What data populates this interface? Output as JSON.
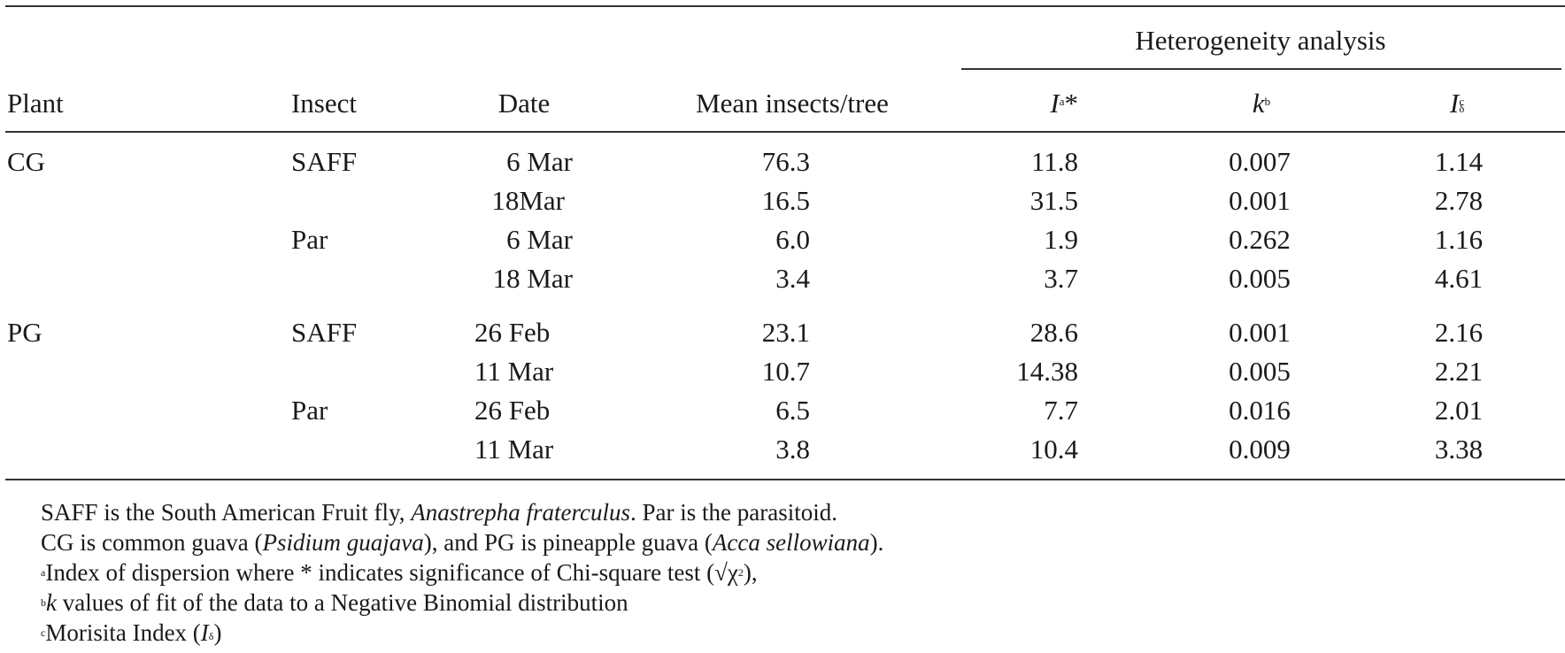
{
  "header": {
    "group": "Heterogeneity analysis",
    "plant": "Plant",
    "insect": "Insect",
    "date": "Date",
    "mean": "Mean insects/tree",
    "i_sym": "I",
    "i_sup": "a",
    "i_star": "*",
    "k_sym": "k",
    "k_sup": "b",
    "id_sym": "I",
    "id_sub": "δ",
    "id_sup": "c"
  },
  "rows": [
    {
      "plant": "CG",
      "insect": "SAFF",
      "date": "6 Mar",
      "mean": "76.3",
      "i": "11.8",
      "k": "0.007",
      "id": "1.14"
    },
    {
      "plant": "",
      "insect": "",
      "date": "18Mar",
      "mean": "16.5",
      "i": "31.5",
      "k": "0.001",
      "id": "2.78"
    },
    {
      "plant": "",
      "insect": "Par",
      "date": "6 Mar",
      "mean": "6.0",
      "i": "1.9",
      "k": "0.262",
      "id": "1.16"
    },
    {
      "plant": "",
      "insect": "",
      "date": "18 Mar",
      "mean": "3.4",
      "i": "3.7",
      "k": "0.005",
      "id": "4.61"
    },
    {
      "plant": "PG",
      "insect": "SAFF",
      "date": "26 Feb",
      "mean": "23.1",
      "i": "28.6",
      "k": "0.001",
      "id": "2.16"
    },
    {
      "plant": "",
      "insect": "",
      "date": "11 Mar",
      "mean": "10.7",
      "i": "14.38",
      "k": "0.005",
      "id": "2.21"
    },
    {
      "plant": "",
      "insect": "Par",
      "date": "26 Feb",
      "mean": "6.5",
      "i": "7.7",
      "k": "0.016",
      "id": "2.01"
    },
    {
      "plant": "",
      "insect": "",
      "date": "11 Mar",
      "mean": "3.8",
      "i": "10.4",
      "k": "0.009",
      "id": "3.38"
    }
  ],
  "footnotes": {
    "n1_a": "SAFF is the South American Fruit fly, ",
    "n1_b": "Anastrepha fraterculus",
    "n1_c": ". Par is the parasitoid.",
    "n2_a": "CG is common guava (",
    "n2_b": "Psidium guajava",
    "n2_c": "), and PG is pineapple guava (",
    "n2_d": "Acca sellowiana",
    "n2_e": ").",
    "n3_mark": "a",
    "n3_text": "Index of dispersion where * indicates significance of Chi-square test (√χ",
    "n3_sup": "2",
    "n3_end": "),",
    "n4_mark": "b",
    "n4_k": "k",
    "n4_text": " values of fit of the data to a Negative Binomial distribution",
    "n5_mark": "c",
    "n5_text": "Morisita Index (",
    "n5_i": "I",
    "n5_sub": "δ",
    "n5_end": ")"
  }
}
